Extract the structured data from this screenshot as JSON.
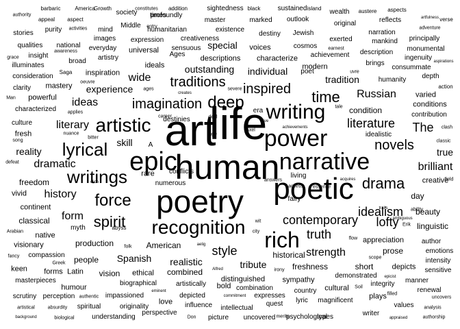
{
  "colors": {
    "background": "#ffffff",
    "text": "#000000"
  },
  "words": [
    {
      "text": "art",
      "weight": 100
    },
    {
      "text": "life",
      "weight": 100
    },
    {
      "text": "human",
      "weight": 90
    },
    {
      "text": "poetry",
      "weight": 85
    },
    {
      "text": "poetic",
      "weight": 75
    },
    {
      "text": "epic",
      "weight": 62
    },
    {
      "text": "narrative",
      "weight": 55
    },
    {
      "text": "power",
      "weight": 50
    },
    {
      "text": "writing",
      "weight": 48
    },
    {
      "text": "rich",
      "weight": 46
    },
    {
      "text": "recognition",
      "weight": 45
    },
    {
      "text": "artistic",
      "weight": 42
    },
    {
      "text": "deep",
      "weight": 40
    },
    {
      "text": "lyrical",
      "weight": 36
    },
    {
      "text": "writings",
      "weight": 36
    },
    {
      "text": "force",
      "weight": 35
    },
    {
      "text": "drama",
      "weight": 34
    },
    {
      "text": "imagination",
      "weight": 34
    },
    {
      "text": "inspired",
      "weight": 34
    },
    {
      "text": "spirit",
      "weight": 33
    },
    {
      "text": "novels",
      "weight": 33
    },
    {
      "text": "time",
      "weight": 33
    },
    {
      "text": "traditions",
      "weight": 32
    },
    {
      "text": "contemporary",
      "weight": 31
    },
    {
      "text": "The",
      "weight": 30
    },
    {
      "text": "idealism",
      "weight": 28
    },
    {
      "text": "literature",
      "weight": 28
    },
    {
      "text": "dramatic",
      "weight": 27
    },
    {
      "text": "truth",
      "weight": 27
    },
    {
      "text": "lofty",
      "weight": 26
    },
    {
      "text": "style",
      "weight": 26
    },
    {
      "text": "history",
      "weight": 25
    },
    {
      "text": "literary",
      "weight": 25
    },
    {
      "text": "Russian",
      "weight": 24
    },
    {
      "text": "brilliant",
      "weight": 24
    },
    {
      "text": "form",
      "weight": 24
    },
    {
      "text": "wide",
      "weight": 24
    },
    {
      "text": "strength",
      "weight": 24
    },
    {
      "text": "ideas",
      "weight": 23
    },
    {
      "text": "tradition",
      "weight": 23
    },
    {
      "text": "skill",
      "weight": 22
    },
    {
      "text": "true",
      "weight": 22
    },
    {
      "text": "realistic",
      "weight": 22
    },
    {
      "text": "reality",
      "weight": 21
    },
    {
      "text": "Spanish",
      "weight": 21
    },
    {
      "text": "experience",
      "weight": 21
    },
    {
      "text": "tribute",
      "weight": 21
    },
    {
      "text": "production",
      "weight": 20
    },
    {
      "text": "outstanding",
      "weight": 20
    },
    {
      "text": "historical",
      "weight": 20
    },
    {
      "text": "individual",
      "weight": 20
    },
    {
      "text": "special",
      "weight": 20
    },
    {
      "text": "condition",
      "weight": 20
    },
    {
      "text": "freshness",
      "weight": 19
    },
    {
      "text": "freedom",
      "weight": 19
    },
    {
      "text": "short",
      "weight": 19
    },
    {
      "text": "classical",
      "weight": 18
    },
    {
      "text": "beauty",
      "weight": 18
    },
    {
      "text": "day",
      "weight": 18
    },
    {
      "text": "prose",
      "weight": 18
    },
    {
      "text": "linguistic",
      "weight": 18
    },
    {
      "text": "American",
      "weight": 18
    },
    {
      "text": "vision",
      "weight": 18
    },
    {
      "text": "combined",
      "weight": 18
    },
    {
      "text": "people",
      "weight": 18
    },
    {
      "text": "appreciation",
      "weight": 17
    },
    {
      "text": "creative",
      "weight": 17
    },
    {
      "text": "native",
      "weight": 17
    },
    {
      "text": "varied",
      "weight": 17
    },
    {
      "text": "vivid",
      "weight": 17
    },
    {
      "text": "rare",
      "weight": 17
    },
    {
      "text": "modern",
      "weight": 16
    },
    {
      "text": "descriptions",
      "weight": 16
    },
    {
      "text": "characterize",
      "weight": 16
    },
    {
      "text": "voices",
      "weight": 16
    },
    {
      "text": "universal",
      "weight": 16
    },
    {
      "text": "ideals",
      "weight": 16
    },
    {
      "text": "mastery",
      "weight": 16
    },
    {
      "text": "powerful",
      "weight": 16
    },
    {
      "text": "inspiration",
      "weight": 16
    },
    {
      "text": "fresh",
      "weight": 16
    },
    {
      "text": "conditions",
      "weight": 16
    },
    {
      "text": "sympathy",
      "weight": 16
    },
    {
      "text": "visionary",
      "weight": 16
    },
    {
      "text": "continent",
      "weight": 16
    },
    {
      "text": "love",
      "weight": 15
    },
    {
      "text": "plays",
      "weight": 15
    },
    {
      "text": "humour",
      "weight": 15
    },
    {
      "text": "forms",
      "weight": 15
    },
    {
      "text": "depicts",
      "weight": 15
    },
    {
      "text": "cultural",
      "weight": 15
    },
    {
      "text": "distinguished",
      "weight": 15
    },
    {
      "text": "bold",
      "weight": 15
    },
    {
      "text": "Latin",
      "weight": 15
    },
    {
      "text": "keen",
      "weight": 15
    },
    {
      "text": "ethical",
      "weight": 15
    },
    {
      "text": "myth",
      "weight": 15
    },
    {
      "text": "humanity",
      "weight": 15
    },
    {
      "text": "idealistic",
      "weight": 15
    },
    {
      "text": "expresses",
      "weight": 14
    },
    {
      "text": "lyric",
      "weight": 14
    },
    {
      "text": "masterpieces",
      "weight": 14
    },
    {
      "text": "country",
      "weight": 14
    },
    {
      "text": "author",
      "weight": 14
    },
    {
      "text": "manner",
      "weight": 14
    },
    {
      "text": "intellectual",
      "weight": 14
    },
    {
      "text": "quest",
      "weight": 14
    },
    {
      "text": "perception",
      "weight": 14
    },
    {
      "text": "values",
      "weight": 14
    },
    {
      "text": "writer",
      "weight": 14
    },
    {
      "text": "spiritual",
      "weight": 14
    },
    {
      "text": "biographical",
      "weight": 14
    },
    {
      "text": "uncovered",
      "weight": 14
    },
    {
      "text": "originality",
      "weight": 14
    },
    {
      "text": "types",
      "weight": 14
    },
    {
      "text": "magnificent",
      "weight": 14
    },
    {
      "text": "picture",
      "weight": 14
    },
    {
      "text": "renewal",
      "weight": 14
    },
    {
      "text": "scrutiny",
      "weight": 14
    },
    {
      "text": "understanding",
      "weight": 13
    },
    {
      "text": "psychological",
      "weight": 13
    },
    {
      "text": "perspective",
      "weight": 13
    },
    {
      "text": "impassioned",
      "weight": 13
    },
    {
      "text": "depicted",
      "weight": 13
    },
    {
      "text": "influence",
      "weight": 13
    },
    {
      "text": "artistically",
      "weight": 13
    },
    {
      "text": "integrity",
      "weight": 13
    },
    {
      "text": "compassion",
      "weight": 13
    },
    {
      "text": "intensity",
      "weight": 13
    },
    {
      "text": "emotions",
      "weight": 13
    },
    {
      "text": "sensitive",
      "weight": 13
    },
    {
      "text": "demonstrated",
      "weight": 13
    },
    {
      "text": "combination",
      "weight": 13
    },
    {
      "text": "clarity",
      "weight": 14
    },
    {
      "text": "characterized",
      "weight": 14
    },
    {
      "text": "culture",
      "weight": 14
    },
    {
      "text": "profoundly",
      "weight": 14
    },
    {
      "text": "humanitarian",
      "weight": 14
    },
    {
      "text": "creativeness",
      "weight": 13
    },
    {
      "text": "expression",
      "weight": 14
    },
    {
      "text": "sensuous",
      "weight": 13
    },
    {
      "text": "Ages",
      "weight": 14
    },
    {
      "text": "images",
      "weight": 14
    },
    {
      "text": "artistry",
      "weight": 13
    },
    {
      "text": "everyday",
      "weight": 13
    },
    {
      "text": "mind",
      "weight": 14
    },
    {
      "text": "purity",
      "weight": 14
    },
    {
      "text": "stories",
      "weight": 14
    },
    {
      "text": "qualities",
      "weight": 13
    },
    {
      "text": "national",
      "weight": 13
    },
    {
      "text": "insight",
      "weight": 14
    },
    {
      "text": "illuminates",
      "weight": 13
    },
    {
      "text": "broad",
      "weight": 14
    },
    {
      "text": "society",
      "weight": 14
    },
    {
      "text": "Middle",
      "weight": 14
    },
    {
      "text": "master",
      "weight": 14
    },
    {
      "text": "existence",
      "weight": 14
    },
    {
      "text": "marked",
      "weight": 14
    },
    {
      "text": "destiny",
      "weight": 13
    },
    {
      "text": "Jewish",
      "weight": 14
    },
    {
      "text": "cosmos",
      "weight": 14
    },
    {
      "text": "outlook",
      "weight": 14
    },
    {
      "text": "sightedness",
      "weight": 13
    },
    {
      "text": "sustained",
      "weight": 13
    },
    {
      "text": "wealth",
      "weight": 14
    },
    {
      "text": "original",
      "weight": 14
    },
    {
      "text": "exerted",
      "weight": 14
    },
    {
      "text": "narration",
      "weight": 13
    },
    {
      "text": "mankind",
      "weight": 13
    },
    {
      "text": "reflects",
      "weight": 14
    },
    {
      "text": "times",
      "weight": 13
    },
    {
      "text": "principally",
      "weight": 13
    },
    {
      "text": "monumental",
      "weight": 13
    },
    {
      "text": "ingenuity",
      "weight": 13
    },
    {
      "text": "description",
      "weight": 13
    },
    {
      "text": "brings",
      "weight": 14
    },
    {
      "text": "consummate",
      "weight": 13
    },
    {
      "text": "depth",
      "weight": 14
    },
    {
      "text": "achievement",
      "weight": 12
    },
    {
      "text": "poet",
      "weight": 14
    },
    {
      "text": "living",
      "weight": 14
    },
    {
      "text": "fairy",
      "weight": 13
    },
    {
      "text": "contribution",
      "weight": 12
    },
    {
      "text": "numerous",
      "weight": 12
    },
    {
      "text": "conflicts",
      "weight": 13
    },
    {
      "text": "destinies",
      "weight": 12
    },
    {
      "text": "era",
      "weight": 13
    },
    {
      "text": "consideration",
      "weight": 12
    },
    {
      "text": "Saga",
      "weight": 11
    },
    {
      "text": "abyss",
      "weight": 11
    },
    {
      "text": "Growth",
      "weight": 11
    },
    {
      "text": "America",
      "weight": 11
    },
    {
      "text": "barbaric",
      "weight": 11
    },
    {
      "text": "authority",
      "weight": 10
    },
    {
      "text": "appeal",
      "weight": 11
    },
    {
      "text": "aspect",
      "weight": 11
    },
    {
      "text": "activities",
      "weight": 10
    },
    {
      "text": "addition",
      "weight": 11
    },
    {
      "text": "constitutes",
      "weight": 10
    },
    {
      "text": "entry",
      "weight": 10
    },
    {
      "text": "black",
      "weight": 11
    },
    {
      "text": "island",
      "weight": 10
    },
    {
      "text": "austere",
      "weight": 11
    },
    {
      "text": "aspects",
      "weight": 11
    },
    {
      "text": "verse",
      "weight": 11
    },
    {
      "text": "adventure",
      "weight": 10
    },
    {
      "text": "grace",
      "weight": 10
    },
    {
      "text": "earnest",
      "weight": 10
    },
    {
      "text": "awareness",
      "weight": 10
    },
    {
      "text": "uvre",
      "weight": 10
    },
    {
      "text": "aspirations",
      "weight": 10
    },
    {
      "text": "action",
      "weight": 11
    },
    {
      "text": "Man",
      "weight": 10
    },
    {
      "text": "applies",
      "weight": 10
    },
    {
      "text": "nuance",
      "weight": 10
    },
    {
      "text": "bitter",
      "weight": 10
    },
    {
      "text": "song",
      "weight": 10
    },
    {
      "text": "defeat",
      "weight": 10
    },
    {
      "text": "Arabian",
      "weight": 10
    },
    {
      "text": "fancy",
      "weight": 10
    },
    {
      "text": "Greek",
      "weight": 10
    },
    {
      "text": "artistical",
      "weight": 10
    },
    {
      "text": "background",
      "weight": 10
    },
    {
      "text": "absurdity",
      "weight": 10
    },
    {
      "text": "biological",
      "weight": 10
    },
    {
      "text": "authentic",
      "weight": 10
    },
    {
      "text": "eminent",
      "weight": 10
    },
    {
      "text": "Don",
      "weight": 10
    },
    {
      "text": "commitment",
      "weight": 10
    },
    {
      "text": "merits",
      "weight": 10
    },
    {
      "text": "appraised",
      "weight": 10
    },
    {
      "text": "authorship",
      "weight": 10
    },
    {
      "text": "analysis",
      "weight": 10
    },
    {
      "text": "uncovers",
      "weight": 10
    },
    {
      "text": "filled",
      "weight": 10
    },
    {
      "text": "epicist",
      "weight": 10
    },
    {
      "text": "Soil",
      "weight": 10
    },
    {
      "text": "ability",
      "weight": 10
    },
    {
      "text": "traits",
      "weight": 10
    },
    {
      "text": "acquires",
      "weight": 10
    },
    {
      "text": "ambiguous",
      "weight": 10
    },
    {
      "text": "Erik",
      "weight": 10
    },
    {
      "text": "field",
      "weight": 10
    },
    {
      "text": "clash",
      "weight": 10
    },
    {
      "text": "classic",
      "weight": 10
    },
    {
      "text": "scope",
      "weight": 10
    },
    {
      "text": "answers",
      "weight": 10
    },
    {
      "text": "wit",
      "weight": 10
    },
    {
      "text": "city",
      "weight": 10
    },
    {
      "text": "flow",
      "weight": 10
    },
    {
      "text": "irony",
      "weight": 10
    },
    {
      "text": "Alfred",
      "weight": 10
    },
    {
      "text": "aelig",
      "weight": 10
    },
    {
      "text": "folk",
      "weight": 10
    },
    {
      "text": "clich",
      "weight": 10
    },
    {
      "text": "alive",
      "weight": 10
    },
    {
      "text": "Axel",
      "weight": 10
    },
    {
      "text": "achievements",
      "weight": 10
    },
    {
      "text": "access",
      "weight": 10
    },
    {
      "text": "essence",
      "weight": 10
    },
    {
      "text": "creates",
      "weight": 10
    },
    {
      "text": "severe",
      "weight": 10
    },
    {
      "text": "career",
      "weight": 10
    },
    {
      "text": "deal",
      "weight": 10
    },
    {
      "text": "age",
      "weight": 10
    },
    {
      "text": "tale",
      "weight": 10
    },
    {
      "text": "oeuvre",
      "weight": 10
    },
    {
      "text": "ages",
      "weight": 10
    },
    {
      "text": "A",
      "weight": 12
    },
    {
      "text": "artfulness",
      "weight": 10
    }
  ]
}
